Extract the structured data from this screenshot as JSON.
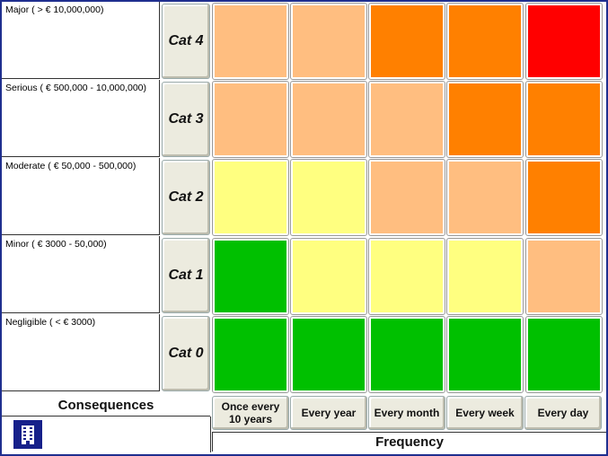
{
  "consequence_rows": [
    {
      "label": "Major ( > € 10,000,000)",
      "category": "Cat 4"
    },
    {
      "label": "Serious ( € 500,000 - 10,000,000)",
      "category": "Cat 3"
    },
    {
      "label": "Moderate ( € 50,000 - 500,000)",
      "category": "Cat 2"
    },
    {
      "label": "Minor ( € 3000 - 50,000)",
      "category": "Cat 1"
    },
    {
      "label": "Negligible ( < € 3000)",
      "category": "Cat 0"
    }
  ],
  "frequency_columns": [
    {
      "line1": "Once every",
      "line2": "10 years"
    },
    {
      "line1": "Every year",
      "line2": ""
    },
    {
      "line1": "Every month",
      "line2": ""
    },
    {
      "line1": "Every week",
      "line2": ""
    },
    {
      "line1": "Every day",
      "line2": ""
    }
  ],
  "axis": {
    "consequences": "Consequences",
    "frequency": "Frequency"
  },
  "colors": {
    "red": "#ff0000",
    "orange": "#ff8000",
    "peach": "#ffbe80",
    "yellow": "#ffff80",
    "green": "#00c000"
  },
  "matrix": [
    [
      "peach",
      "peach",
      "orange",
      "orange",
      "red"
    ],
    [
      "peach",
      "peach",
      "peach",
      "orange",
      "orange"
    ],
    [
      "yellow",
      "yellow",
      "peach",
      "peach",
      "orange"
    ],
    [
      "green",
      "yellow",
      "yellow",
      "yellow",
      "peach"
    ],
    [
      "green",
      "green",
      "green",
      "green",
      "green"
    ]
  ],
  "logo_icon": "building-icon"
}
